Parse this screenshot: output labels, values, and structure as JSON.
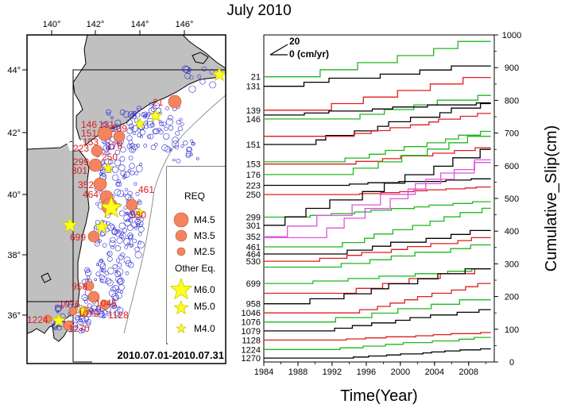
{
  "title": "July 2010",
  "colors": {
    "land": "#c0c0c0",
    "sea": "#ffffff",
    "req_fill": "#f4845f",
    "req_label": "#d82020",
    "eq_fill": "#ffff1e",
    "eq_stroke": "#c8c800",
    "small_eq": "#2a2ad0"
  },
  "map": {
    "lon_ticks": [
      "140°",
      "142°",
      "144°",
      "146°"
    ],
    "lat_ticks": [
      "44°",
      "42°",
      "40°",
      "38°",
      "36°"
    ],
    "date_range": "2010.07.01-2010.07.31",
    "legend": {
      "req_title": "REQ",
      "req_items": [
        "M4.5",
        "M3.5",
        "M2.5"
      ],
      "other_title": "Other Eq.",
      "other_items": [
        "M6.0",
        "M5.0",
        "M4.0"
      ]
    },
    "req_labels": [
      "21",
      "131",
      "139",
      "146",
      "151",
      "153",
      "176",
      "223",
      "250",
      "299",
      "301",
      "352",
      "461",
      "464",
      "530",
      "699",
      "958",
      "1046",
      "1076",
      "1079",
      "1128",
      "1224",
      "1270"
    ]
  },
  "chart_data": {
    "type": "line",
    "title": "July 2010",
    "xlabel": "Time(Year)",
    "ylabel": "Cumulative_Slip(cm)",
    "xlim": [
      1984,
      2011
    ],
    "ylim": [
      0,
      1000
    ],
    "x_ticks": [
      1984,
      1988,
      1992,
      1996,
      2000,
      2004,
      2008
    ],
    "y_ticks": [
      0,
      100,
      200,
      300,
      400,
      500,
      600,
      700,
      800,
      900,
      1000
    ],
    "scale_bar": {
      "value": "20",
      "label": "0 (cm/yr)"
    },
    "series": [
      {
        "label": "21",
        "color": "green",
        "base": 872,
        "end": 980
      },
      {
        "label": "131",
        "color": "black",
        "base": 843,
        "end": 905
      },
      {
        "label": "139",
        "color": "red",
        "base": 770,
        "end": 870
      },
      {
        "label": "146",
        "color": "green",
        "base": 743,
        "end": 815
      },
      {
        "label": "",
        "color": "black",
        "base": 755,
        "end": 792
      },
      {
        "label": "151",
        "color": "black",
        "base": 665,
        "end": 790
      },
      {
        "label": "",
        "color": "red",
        "base": 690,
        "end": 760
      },
      {
        "label": "",
        "color": "green",
        "base": 612,
        "end": 705
      },
      {
        "label": "153",
        "color": "red",
        "base": 605,
        "end": 655
      },
      {
        "label": "176",
        "color": "green",
        "base": 573,
        "end": 690
      },
      {
        "label": "223",
        "color": "black",
        "base": 540,
        "end": 560
      },
      {
        "label": "250",
        "color": "red",
        "base": 512,
        "end": 535
      },
      {
        "label": "",
        "color": "magenta",
        "base": 380,
        "end": 618
      },
      {
        "label": "299",
        "color": "green",
        "base": 443,
        "end": 490
      },
      {
        "label": "301",
        "color": "black",
        "base": 418,
        "end": 650
      },
      {
        "label": "352",
        "color": "magenta",
        "base": 383,
        "end": 610
      },
      {
        "label": "461",
        "color": "green",
        "base": 352,
        "end": 470
      },
      {
        "label": "464",
        "color": "black",
        "base": 330,
        "end": 402
      },
      {
        "label": "530",
        "color": "red",
        "base": 308,
        "end": 380
      },
      {
        "label": "",
        "color": "green",
        "base": 290,
        "end": 358
      },
      {
        "label": "699",
        "color": "green",
        "base": 240,
        "end": 285
      },
      {
        "label": "",
        "color": "red",
        "base": 210,
        "end": 285
      },
      {
        "label": "958",
        "color": "black",
        "base": 178,
        "end": 285
      },
      {
        "label": "1046",
        "color": "red",
        "base": 150,
        "end": 240
      },
      {
        "label": "1076",
        "color": "green",
        "base": 122,
        "end": 190
      },
      {
        "label": "1079",
        "color": "black",
        "base": 95,
        "end": 160
      },
      {
        "label": "1128",
        "color": "red",
        "base": 67,
        "end": 90
      },
      {
        "label": "1224",
        "color": "green",
        "base": 38,
        "end": 75
      },
      {
        "label": "1270",
        "color": "black",
        "base": 12,
        "end": 40
      }
    ]
  }
}
